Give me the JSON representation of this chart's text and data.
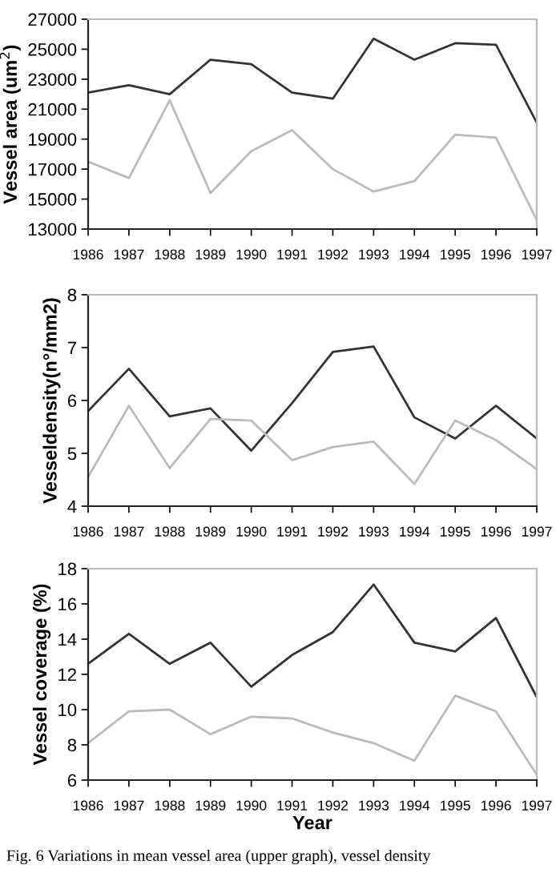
{
  "chart_data": [
    {
      "type": "line",
      "ylabel": "Vessel area (um$^{2}$)",
      "categories": [
        "1986",
        "1987",
        "1988",
        "1989",
        "1990",
        "1991",
        "1992",
        "1993",
        "1994",
        "1995",
        "1996",
        "1997"
      ],
      "ylim": [
        13000,
        27000
      ],
      "yticks": [
        13000,
        15000,
        17000,
        19000,
        21000,
        23000,
        25000,
        27000
      ],
      "grid": false,
      "legend": false,
      "marker": "none",
      "line_style": "solid",
      "series": [
        {
          "color": "#333333",
          "values": [
            22100,
            22600,
            22000,
            24300,
            24000,
            22100,
            21700,
            25700,
            24300,
            25400,
            25300,
            20100
          ]
        },
        {
          "color": "#bbbbbb",
          "values": [
            17500,
            16400,
            21600,
            15400,
            18200,
            19600,
            17000,
            15500,
            16200,
            19300,
            19100,
            13600
          ]
        }
      ]
    },
    {
      "type": "line",
      "ylabel": "Vesseldensity(n°/mm2)",
      "categories": [
        "1986",
        "1987",
        "1988",
        "1989",
        "1990",
        "1991",
        "1992",
        "1993",
        "1994",
        "1995",
        "1996",
        "1997"
      ],
      "ylim": [
        4,
        8
      ],
      "yticks": [
        4,
        5,
        6,
        7,
        8
      ],
      "grid": false,
      "legend": false,
      "marker": "none",
      "line_style": "solid",
      "series": [
        {
          "color": "#333333",
          "values": [
            5.8,
            6.6,
            5.7,
            5.85,
            5.05,
            5.95,
            6.92,
            7.02,
            5.68,
            5.28,
            5.9,
            5.28
          ]
        },
        {
          "color": "#bbbbbb",
          "values": [
            4.55,
            5.9,
            4.72,
            5.65,
            5.62,
            4.87,
            5.12,
            5.22,
            4.42,
            5.62,
            5.25,
            4.7
          ]
        }
      ]
    },
    {
      "type": "line",
      "ylabel": "Vessel coverage (%)",
      "xlabel": "Year",
      "categories": [
        "1986",
        "1987",
        "1988",
        "1989",
        "1990",
        "1991",
        "1992",
        "1993",
        "1994",
        "1995",
        "1996",
        "1997"
      ],
      "ylim": [
        6,
        18
      ],
      "yticks": [
        6,
        8,
        10,
        12,
        14,
        16,
        18
      ],
      "grid": false,
      "legend": false,
      "marker": "none",
      "line_style": "solid",
      "annotations": [
        "Fig. 6 Variations in mean vessel area (upper graph), vessel density"
      ],
      "series": [
        {
          "color": "#333333",
          "values": [
            12.6,
            14.3,
            12.6,
            13.8,
            11.3,
            13.1,
            14.4,
            17.1,
            13.8,
            13.3,
            15.2,
            10.7
          ]
        },
        {
          "color": "#bbbbbb",
          "values": [
            8.1,
            9.9,
            10.0,
            8.6,
            9.6,
            9.5,
            8.7,
            8.1,
            7.1,
            10.8,
            9.9,
            6.3
          ]
        }
      ]
    }
  ]
}
